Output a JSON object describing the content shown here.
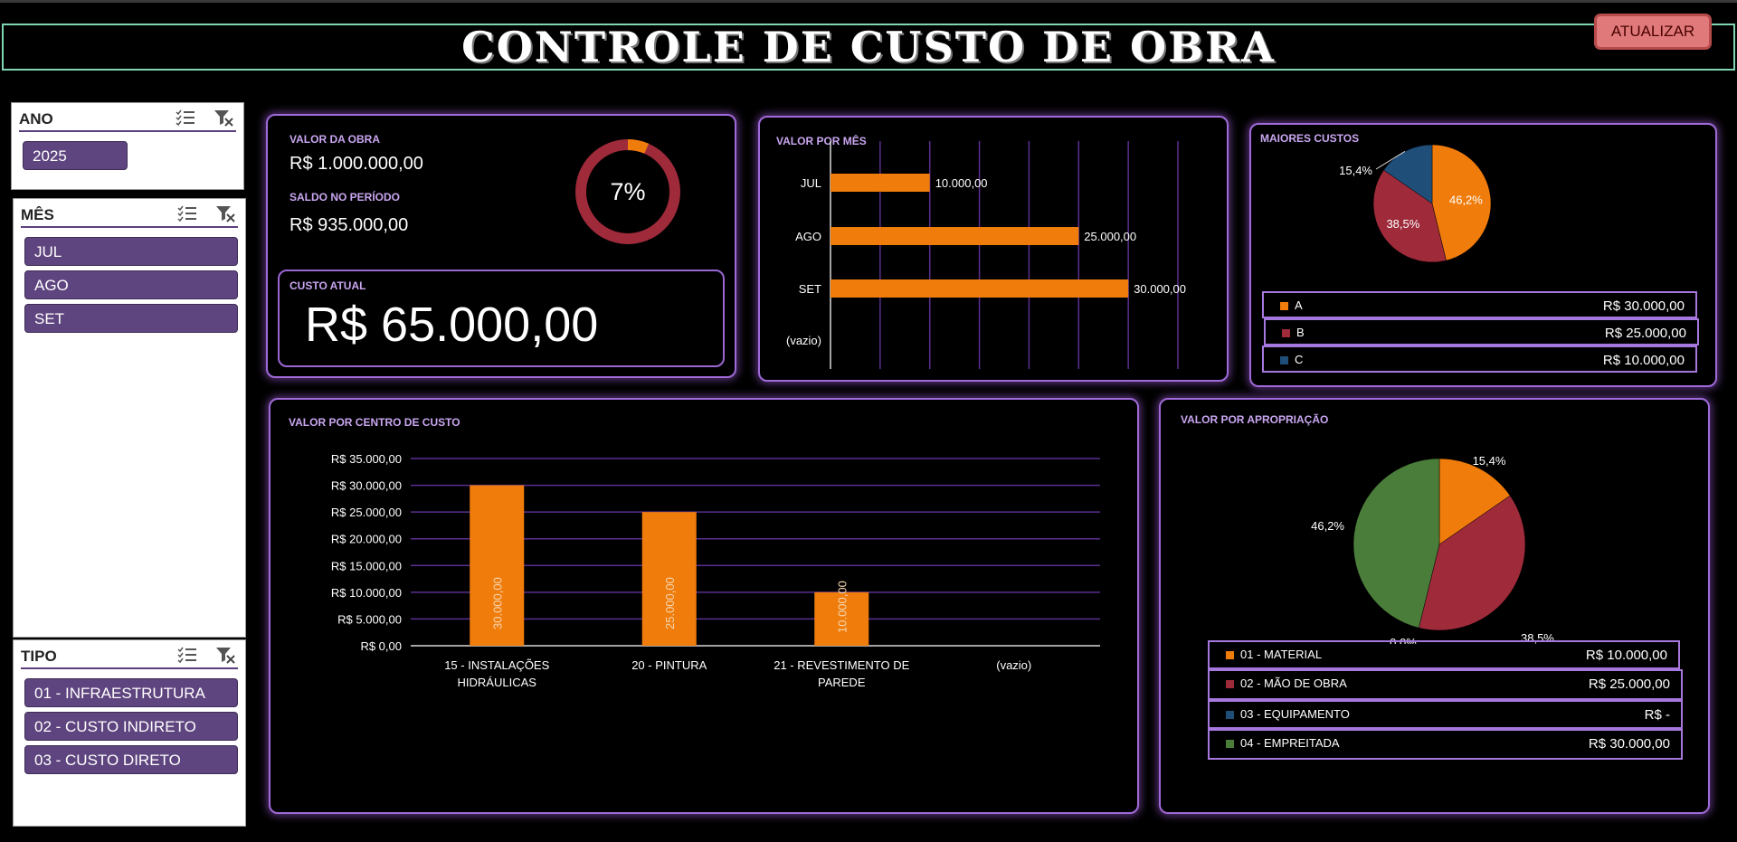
{
  "header": {
    "title": "CONTROLE DE CUSTO DE OBRA",
    "update_button": "ATUALIZAR"
  },
  "slicers": {
    "ano": {
      "title": "ANO",
      "items": [
        "2025"
      ]
    },
    "mes": {
      "title": "MÊS",
      "items": [
        "JUL",
        "AGO",
        "SET"
      ]
    },
    "tipo": {
      "title": "TIPO",
      "items": [
        "01 - INFRAESTRUTURA",
        "02 - CUSTO INDIRETO",
        "03 - CUSTO DIRETO"
      ]
    }
  },
  "summary": {
    "valor_obra_label": "VALOR DA OBRA",
    "valor_obra": "R$ 1.000.000,00",
    "saldo_label": "SALDO NO PERÍODO",
    "saldo": "R$ 935.000,00",
    "percent_label": "7%",
    "percent_value": 0.065,
    "custo_atual_label": "CUSTO ATUAL",
    "custo_atual": "R$ 65.000,00"
  },
  "colors": {
    "orange": "#f07c0c",
    "red": "#9e2a3a",
    "blue": "#1f4e79",
    "green": "#4a7d3a",
    "grid": "#5a2f8f",
    "panel_border": "#a06ad9"
  },
  "chart_data": [
    {
      "id": "valor_por_mes",
      "type": "bar",
      "orientation": "horizontal",
      "title": "VALOR POR MÊS",
      "categories": [
        "JUL",
        "AGO",
        "SET",
        "(vazio)"
      ],
      "values": [
        10000,
        25000,
        30000,
        null
      ],
      "value_labels": [
        "10.000,00",
        "25.000,00",
        "30.000,00",
        ""
      ],
      "xlim": [
        0,
        35000
      ]
    },
    {
      "id": "maiores_custos",
      "type": "pie",
      "title": "MAIORES CUSTOS",
      "labels": [
        "A",
        "B",
        "C"
      ],
      "values": [
        30000,
        25000,
        10000
      ],
      "percent_labels": [
        "46,2%",
        "38,5%",
        "15,4%"
      ],
      "legend_values": [
        "R$ 30.000,00",
        "R$ 25.000,00",
        "R$ 10.000,00"
      ]
    },
    {
      "id": "valor_por_centro_de_custo",
      "type": "bar",
      "title": "VALOR POR CENTRO DE CUSTO",
      "categories": [
        [
          "15 - INSTALAÇÕES",
          "HIDRÁULICAS"
        ],
        [
          "20 - PINTURA"
        ],
        [
          "21 - REVESTIMENTO DE",
          "PAREDE"
        ],
        [
          "(vazio)"
        ]
      ],
      "values": [
        30000,
        25000,
        10000,
        null
      ],
      "value_labels": [
        "30.000,00",
        "25.000,00",
        "10.000,00",
        ""
      ],
      "y_ticks": [
        "R$ 0,00",
        "R$ 5.000,00",
        "R$ 10.000,00",
        "R$ 15.000,00",
        "R$ 20.000,00",
        "R$ 25.000,00",
        "R$ 30.000,00",
        "R$ 35.000,00"
      ],
      "ylim": [
        0,
        35000
      ]
    },
    {
      "id": "valor_por_apropriacao",
      "type": "pie",
      "title": "VALOR POR APROPRIAÇÃO",
      "labels": [
        "01 - MATERIAL",
        "02 - MÃO DE OBRA",
        "03 - EQUIPAMENTO",
        "04 - EMPREITADA"
      ],
      "values": [
        10000,
        25000,
        0,
        30000
      ],
      "percent_labels": [
        "15,4%",
        "38,5%",
        "0,0%",
        "46,2%"
      ],
      "legend_values": [
        "R$ 10.000,00",
        "R$ 25.000,00",
        "R$ -",
        "R$ 30.000,00"
      ]
    }
  ]
}
